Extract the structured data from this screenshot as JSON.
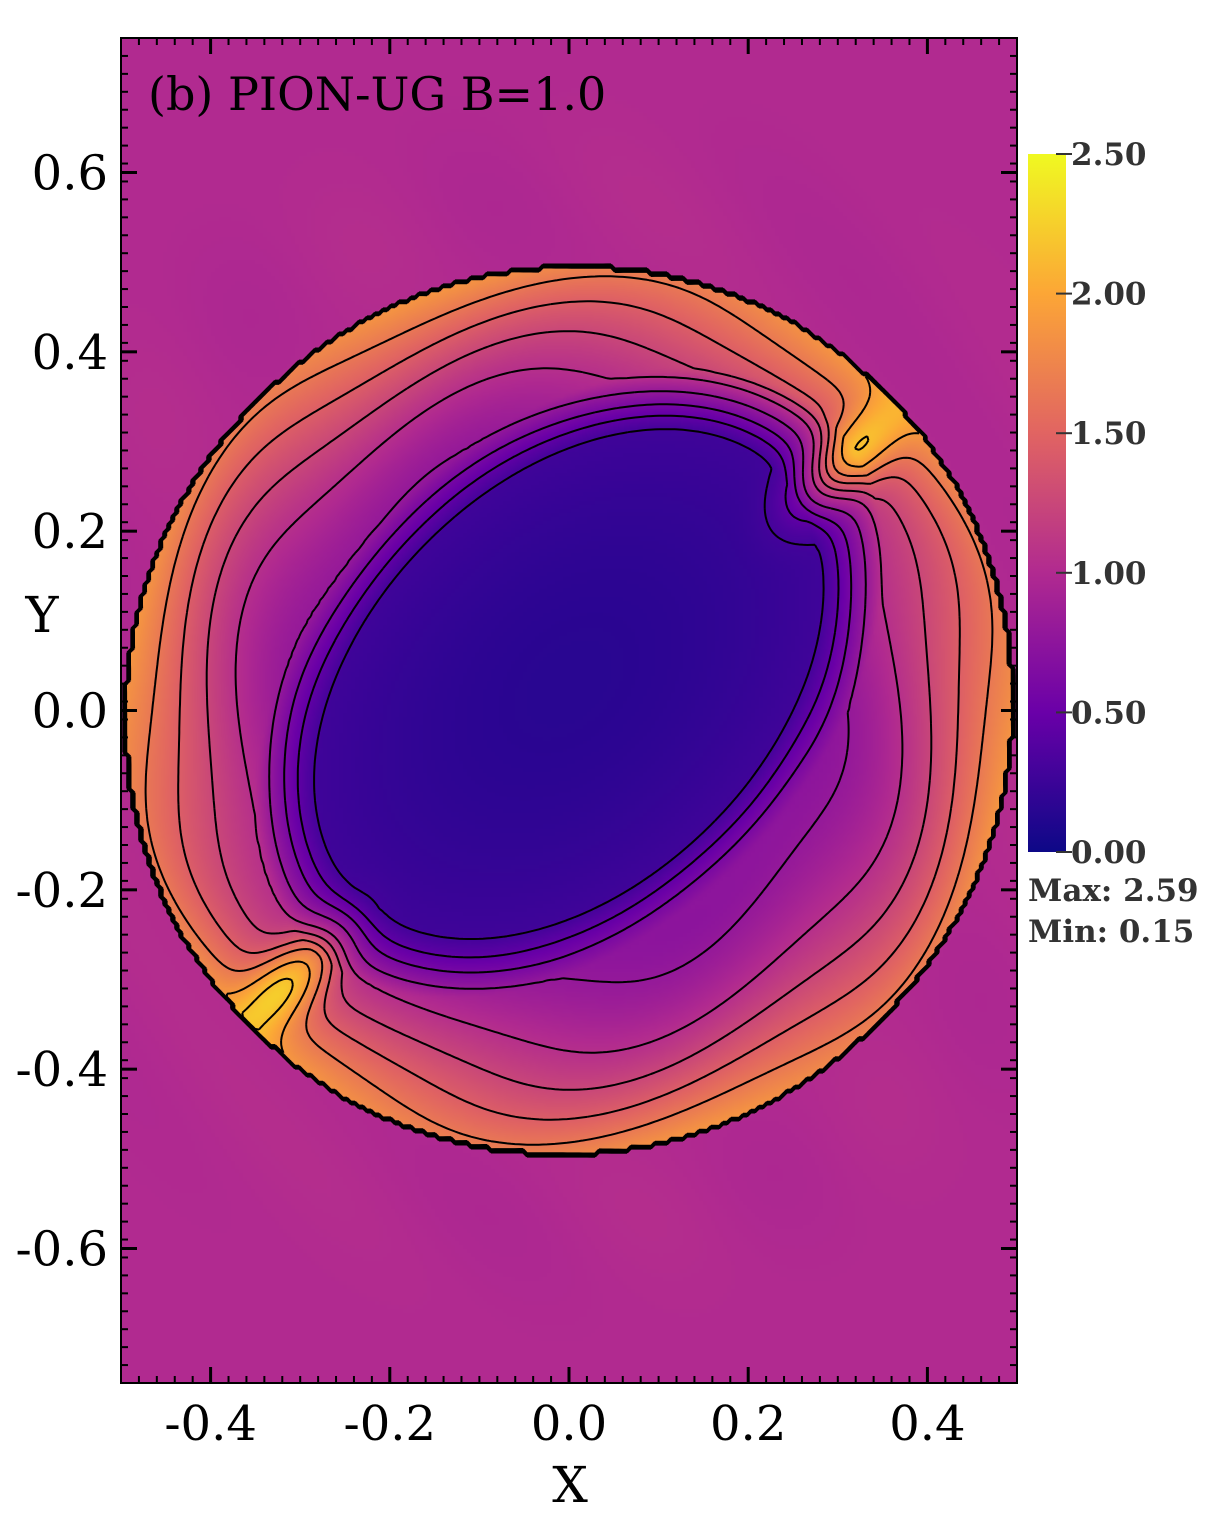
{
  "chart_data": {
    "type": "heatmap",
    "title": "(b) PION-UG B=1.0",
    "xlabel": "X",
    "ylabel": "Y",
    "xlim": [
      -0.5,
      0.5
    ],
    "ylim": [
      -0.75,
      0.75
    ],
    "x_ticks": [
      {
        "value": -0.4,
        "label": "-0.4"
      },
      {
        "value": -0.2,
        "label": "-0.2"
      },
      {
        "value": 0.0,
        "label": "0.0"
      },
      {
        "value": 0.2,
        "label": "0.2"
      },
      {
        "value": 0.4,
        "label": "0.4"
      }
    ],
    "y_ticks": [
      {
        "value": 0.6,
        "label": "0.6"
      },
      {
        "value": 0.4,
        "label": "0.4"
      },
      {
        "value": 0.2,
        "label": "0.2"
      },
      {
        "value": 0.0,
        "label": "0.0"
      },
      {
        "value": -0.2,
        "label": "-0.2"
      },
      {
        "value": -0.4,
        "label": "-0.4"
      },
      {
        "value": -0.6,
        "label": "-0.6"
      }
    ],
    "colorbar": {
      "min": 0.0,
      "max": 2.5,
      "ticks": [
        {
          "value": 2.5,
          "label": "2.50"
        },
        {
          "value": 2.0,
          "label": "2.00"
        },
        {
          "value": 1.5,
          "label": "1.50"
        },
        {
          "value": 1.0,
          "label": "1.00"
        },
        {
          "value": 0.5,
          "label": "0.50"
        },
        {
          "value": 0.0,
          "label": "0.00"
        }
      ],
      "colors": [
        "#0d0887",
        "#6a00a8",
        "#b12a90",
        "#e16462",
        "#fca636",
        "#f0f921"
      ],
      "max_text": "Max: 2.59",
      "min_text": "Min: 0.15"
    },
    "field": {
      "background": 1.0,
      "shell_center": [
        0.0,
        0.0
      ],
      "shell_radii": [
        0.49,
        0.5
      ],
      "shell_rotation_deg": -45,
      "shell_peak": 1.8,
      "cavity_center": [
        0.0,
        0.03
      ],
      "cavity_radii": [
        0.33,
        0.22
      ],
      "cavity_rotation_deg": 45,
      "cavity_value": 0.15,
      "hotspots": [
        {
          "x": 0.31,
          "y": 0.28,
          "value": 2.59
        },
        {
          "x": -0.31,
          "y": -0.3,
          "value": 2.55
        }
      ]
    }
  }
}
